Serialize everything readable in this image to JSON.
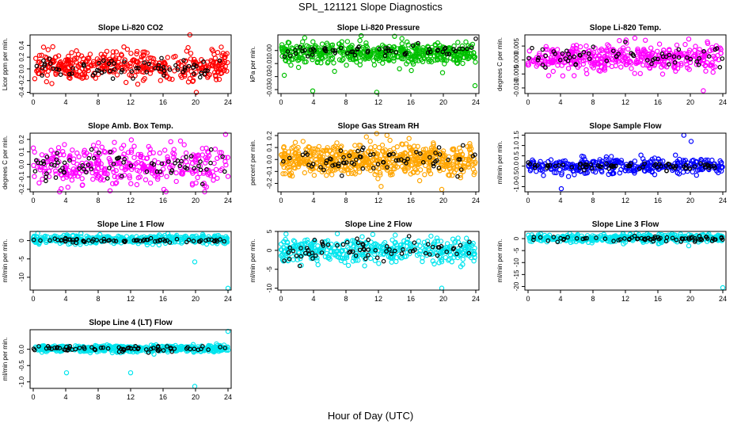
{
  "figure": {
    "title": "SPL_121121  Slope Diagnostics",
    "xlabel": "Hour of Day (UTC)"
  },
  "chart_data": [
    {
      "type": "scatter",
      "title": "Slope Li-820 CO2",
      "ylabel": "Licor ppm per min.",
      "xlim": [
        0,
        24
      ],
      "xticks": [
        0,
        4,
        8,
        12,
        16,
        20,
        24
      ],
      "ylim": [
        -0.42,
        0.58
      ],
      "yticks": [
        -0.4,
        -0.2,
        0.0,
        0.2,
        0.4
      ],
      "ytick_labels": [
        "-0.4",
        "-0.2",
        "0.0",
        "0.2",
        "0.4"
      ],
      "series": [
        {
          "name": "all",
          "color": "#ff0000",
          "n": 400,
          "center": 0.05,
          "spread": 0.12,
          "outliers": [
            [
              19.3,
              0.58
            ],
            [
              20.1,
              -0.4
            ]
          ]
        },
        {
          "name": "subset",
          "color": "#000000",
          "n": 70,
          "center": 0.02,
          "spread": 0.1,
          "outliers": []
        }
      ]
    },
    {
      "type": "scatter",
      "title": "Slope Li-820 Pressure",
      "ylabel": "kPa per min.",
      "xlim": [
        0,
        24
      ],
      "xticks": [
        0,
        4,
        8,
        12,
        16,
        20,
        24
      ],
      "ylim": [
        -0.033,
        0.012
      ],
      "yticks": [
        -0.03,
        -0.02,
        -0.01,
        0.0
      ],
      "ytick_labels": [
        "-0.03",
        "-0.02",
        "-0.01",
        "0.00"
      ],
      "series": [
        {
          "name": "all",
          "color": "#00c000",
          "n": 500,
          "center": -0.002,
          "spread": 0.004,
          "outliers": [
            [
              3.9,
              -0.031
            ],
            [
              0.4,
              -0.019
            ],
            [
              6.6,
              -0.016
            ],
            [
              11.8,
              -0.032
            ],
            [
              14.6,
              -0.014
            ],
            [
              19.9,
              -0.017
            ],
            [
              23.9,
              -0.027
            ]
          ]
        },
        {
          "name": "subset",
          "color": "#000000",
          "n": 60,
          "center": 0.0,
          "spread": 0.002,
          "outliers": [
            [
              24,
              0.009
            ]
          ]
        }
      ]
    },
    {
      "type": "scatter",
      "title": "Slope Li-820 Temp.",
      "ylabel": "degrees C per min.",
      "xlim": [
        0,
        24
      ],
      "xticks": [
        0,
        4,
        8,
        12,
        16,
        20,
        24
      ],
      "ylim": [
        -0.012,
        0.009
      ],
      "yticks": [
        -0.01,
        -0.005,
        0.0,
        0.005
      ],
      "ytick_labels": [
        "-0.010",
        "-0.005",
        "0.000",
        "0.005"
      ],
      "series": [
        {
          "name": "all",
          "color": "#ff00ff",
          "n": 400,
          "center": 0.0006,
          "spread": 0.0025,
          "outliers": [
            [
              19.8,
              0.0075
            ],
            [
              21.6,
              -0.011
            ],
            [
              22.1,
              0.0065
            ]
          ]
        },
        {
          "name": "subset",
          "color": "#000000",
          "n": 60,
          "center": 0.0008,
          "spread": 0.002,
          "outliers": []
        }
      ]
    },
    {
      "type": "scatter",
      "title": "Slope Amb. Box Temp.",
      "ylabel": "degrees C per min.",
      "xlim": [
        0,
        24
      ],
      "xticks": [
        0,
        4,
        8,
        12,
        16,
        20,
        24
      ],
      "ylim": [
        -0.22,
        0.25
      ],
      "yticks": [
        -0.2,
        -0.1,
        0.0,
        0.1,
        0.2
      ],
      "ytick_labels": [
        "-0.2",
        "-0.1",
        "0.0",
        "0.1",
        "0.2"
      ],
      "series": [
        {
          "name": "all",
          "color": "#ff00ff",
          "n": 350,
          "center": 0.0,
          "spread": 0.08,
          "outliers": [
            [
              16.1,
              -0.2
            ],
            [
              23.7,
              0.24
            ]
          ]
        },
        {
          "name": "subset",
          "color": "#000000",
          "n": 70,
          "center": 0.0,
          "spread": 0.06,
          "outliers": []
        }
      ]
    },
    {
      "type": "scatter",
      "title": "Slope Gas Stream RH",
      "ylabel": "percent per min.",
      "xlim": [
        0,
        24
      ],
      "xticks": [
        0,
        4,
        8,
        12,
        16,
        20,
        24
      ],
      "ylim": [
        -0.27,
        0.22
      ],
      "yticks": [
        -0.2,
        -0.1,
        0.0,
        0.1,
        0.2
      ],
      "ytick_labels": [
        "-0.2",
        "-0.1",
        "0.0",
        "0.1",
        "0.2"
      ],
      "series": [
        {
          "name": "all",
          "color": "#ffa500",
          "n": 600,
          "center": 0.0,
          "spread": 0.07,
          "outliers": [
            [
              19.8,
              -0.25
            ]
          ]
        },
        {
          "name": "subset",
          "color": "#000000",
          "n": 70,
          "center": 0.0,
          "spread": 0.05,
          "outliers": []
        }
      ]
    },
    {
      "type": "scatter",
      "title": "Slope Sample Flow",
      "ylabel": "ml/min per min.",
      "xlim": [
        0,
        24
      ],
      "xticks": [
        0,
        4,
        8,
        12,
        16,
        20,
        24
      ],
      "ylim": [
        -1.25,
        1.6
      ],
      "yticks": [
        -1.0,
        -0.5,
        0.0,
        0.5,
        1.0,
        1.5
      ],
      "ytick_labels": [
        "-1.0",
        "-0.5",
        "0.0",
        "0.5",
        "1.0",
        "1.5"
      ],
      "series": [
        {
          "name": "all",
          "color": "#0000ff",
          "n": 350,
          "center": 0.0,
          "spread": 0.18,
          "outliers": [
            [
              4.1,
              -1.1
            ],
            [
              19.2,
              1.5
            ],
            [
              20.1,
              1.2
            ]
          ]
        },
        {
          "name": "subset",
          "color": "#000000",
          "n": 70,
          "center": 0.0,
          "spread": 0.08,
          "outliers": []
        }
      ]
    },
    {
      "type": "scatter",
      "title": "Slope Line 1 Flow",
      "ylabel": "ml/min per min.",
      "xlim": [
        0,
        24
      ],
      "xticks": [
        0,
        4,
        8,
        12,
        16,
        20,
        24
      ],
      "ylim": [
        -13.5,
        2.5
      ],
      "yticks": [
        -10,
        -5,
        0
      ],
      "ytick_labels": [
        "-10",
        "-5",
        "0"
      ],
      "series": [
        {
          "name": "all",
          "color": "#00e5ee",
          "n": 400,
          "center": 0.3,
          "spread": 0.6,
          "outliers": [
            [
              19.9,
              -5.8
            ],
            [
              24,
              -13
            ]
          ]
        },
        {
          "name": "subset",
          "color": "#000000",
          "n": 70,
          "center": 0.0,
          "spread": 0.25,
          "outliers": []
        }
      ]
    },
    {
      "type": "scatter",
      "title": "Slope Line 2 Flow",
      "ylabel": "ml/min per min.",
      "xlim": [
        0,
        24
      ],
      "xticks": [
        0,
        4,
        8,
        12,
        16,
        20,
        24
      ],
      "ylim": [
        -10.5,
        5.0
      ],
      "yticks": [
        -10,
        -5,
        0,
        5
      ],
      "ytick_labels": [
        "-10",
        "-5",
        "0",
        "5"
      ],
      "series": [
        {
          "name": "all",
          "color": "#00e5ee",
          "n": 400,
          "center": 0.0,
          "spread": 1.6,
          "outliers": [
            [
              19.8,
              -10
            ]
          ]
        },
        {
          "name": "subset",
          "color": "#000000",
          "n": 70,
          "center": 0.0,
          "spread": 1.4,
          "outliers": []
        }
      ]
    },
    {
      "type": "scatter",
      "title": "Slope Line 3 Flow",
      "ylabel": "ml/min per min.",
      "xlim": [
        0,
        24
      ],
      "xticks": [
        0,
        4,
        8,
        12,
        16,
        20,
        24
      ],
      "ylim": [
        -21.5,
        3.0
      ],
      "yticks": [
        -20,
        -15,
        -10,
        -5,
        0
      ],
      "ytick_labels": [
        "-20",
        "-15",
        "-10",
        "-5",
        "0"
      ],
      "series": [
        {
          "name": "all",
          "color": "#00e5ee",
          "n": 400,
          "center": 0.2,
          "spread": 0.8,
          "outliers": [
            [
              19.8,
              -3
            ],
            [
              24,
              -20.5
            ]
          ]
        },
        {
          "name": "subset",
          "color": "#000000",
          "n": 70,
          "center": 0.0,
          "spread": 0.6,
          "outliers": []
        }
      ]
    },
    {
      "type": "scatter",
      "title": "Slope Line 4 (LT) Flow",
      "ylabel": "ml/min per min.",
      "xlim": [
        0,
        24
      ],
      "xticks": [
        0,
        4,
        8,
        12,
        16,
        20,
        24
      ],
      "ylim": [
        -1.2,
        0.6
      ],
      "yticks": [
        -1.0,
        -0.5,
        0.0
      ],
      "ytick_labels": [
        "-1.0",
        "-0.5",
        "0.0"
      ],
      "series": [
        {
          "name": "all",
          "color": "#00e5ee",
          "n": 450,
          "center": 0.02,
          "spread": 0.05,
          "outliers": [
            [
              4.1,
              -0.72
            ],
            [
              12,
              -0.72
            ],
            [
              19.9,
              -1.14
            ],
            [
              24,
              0.55
            ]
          ]
        },
        {
          "name": "subset",
          "color": "#000000",
          "n": 70,
          "center": 0.02,
          "spread": 0.05,
          "outliers": []
        }
      ]
    }
  ]
}
